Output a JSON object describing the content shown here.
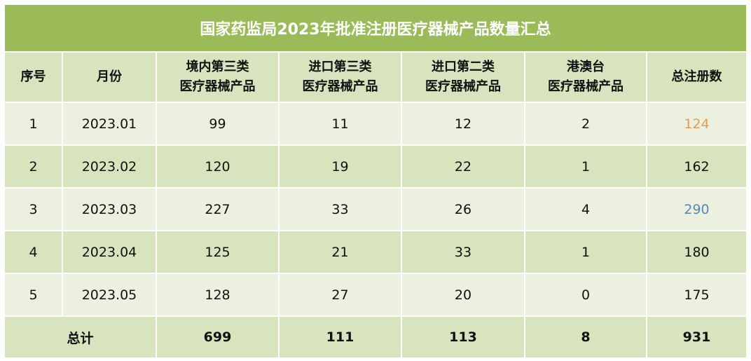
{
  "title": "国家药监局2023年批准注册医疗器械产品数量汇总",
  "colors": {
    "title_bg": "#9bbb59",
    "header_bg": "#d7e4bd",
    "row_light": "#ebf1de",
    "row_dark": "#d7e4bd",
    "highlight_min": "#e59a55",
    "highlight_max": "#5b86b8"
  },
  "headers": [
    "序号",
    "月份",
    [
      "境内第三类",
      "医疗器械产品"
    ],
    [
      "进口第三类",
      "医疗器械产品"
    ],
    [
      "进口第二类",
      "医疗器械产品"
    ],
    [
      "港澳台",
      "医疗器械产品"
    ],
    "总注册数"
  ],
  "rows": [
    [
      "1",
      "2023.01",
      "99",
      "11",
      "12",
      "2",
      "124"
    ],
    [
      "2",
      "2023.02",
      "120",
      "19",
      "22",
      "1",
      "162"
    ],
    [
      "3",
      "2023.03",
      "227",
      "33",
      "26",
      "4",
      "290"
    ],
    [
      "4",
      "2023.04",
      "125",
      "21",
      "33",
      "1",
      "180"
    ],
    [
      "5",
      "2023.05",
      "128",
      "27",
      "20",
      "0",
      "175"
    ]
  ],
  "total": {
    "label": "总计",
    "values": [
      "699",
      "111",
      "113",
      "8",
      "931"
    ]
  }
}
